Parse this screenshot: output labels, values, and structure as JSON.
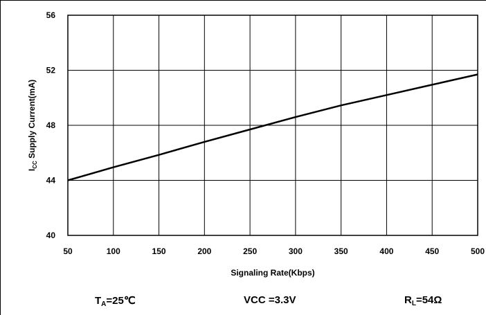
{
  "chart_data": {
    "type": "line",
    "xlabel": "Signaling Rate(Kbps)",
    "ylabel": {
      "prefix": "I",
      "sub": "CC",
      "rest": " Supply Current(mA)"
    },
    "xlim": [
      50,
      500
    ],
    "ylim": [
      40,
      56
    ],
    "xticks": [
      50,
      100,
      150,
      200,
      250,
      300,
      350,
      400,
      450,
      500
    ],
    "yticks": [
      40,
      44,
      48,
      52,
      56
    ],
    "grid": true,
    "series": [
      {
        "x": [
          50,
          100,
          150,
          200,
          250,
          300,
          350,
          400,
          450,
          500
        ],
        "values": [
          44.0,
          44.95,
          45.85,
          46.8,
          47.7,
          48.6,
          49.45,
          50.2,
          50.95,
          51.7
        ],
        "color": "#000000"
      }
    ]
  },
  "conditions": {
    "ta": {
      "prefix": "T",
      "sub": "A",
      "rest": "=25℃"
    },
    "vcc": {
      "text": "VCC =3.3V"
    },
    "rl": {
      "prefix": "R",
      "sub": "L",
      "rest": "=54Ω"
    }
  }
}
